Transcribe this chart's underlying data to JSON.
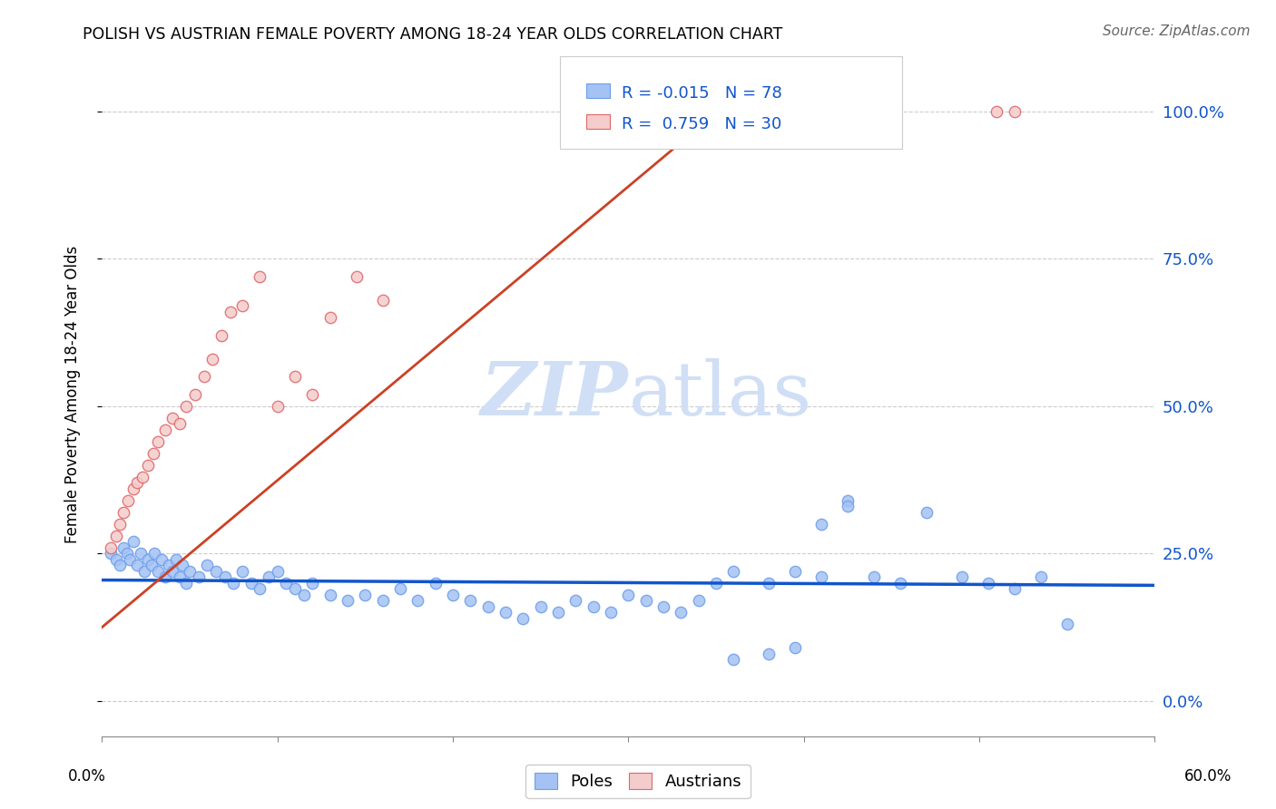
{
  "title": "POLISH VS AUSTRIAN FEMALE POVERTY AMONG 18-24 YEAR OLDS CORRELATION CHART",
  "source": "Source: ZipAtlas.com",
  "ylabel": "Female Poverty Among 18-24 Year Olds",
  "legend_poles_r": "-0.015",
  "legend_poles_n": "78",
  "legend_austrians_r": "0.759",
  "legend_austrians_n": "30",
  "blue_color": "#a4c2f4",
  "blue_edge_color": "#6d9eeb",
  "pink_color": "#f4cccc",
  "pink_edge_color": "#e06666",
  "blue_line_color": "#1155cc",
  "pink_line_color": "#cc4125",
  "watermark_color": "#d0dff5",
  "ytick_vals": [
    0.0,
    0.25,
    0.5,
    0.75,
    1.0
  ],
  "ytick_labels": [
    "0.0%",
    "25.0%",
    "50.0%",
    "75.0%",
    "100.0%"
  ],
  "xlim": [
    0.0,
    0.6
  ],
  "ylim": [
    -0.06,
    1.1
  ],
  "poles_trendline": [
    0.0,
    0.6,
    0.205,
    0.196
  ],
  "austrians_trendline": [
    0.0,
    0.355,
    0.125,
    1.01
  ],
  "poles_x": [
    0.005,
    0.008,
    0.01,
    0.012,
    0.014,
    0.016,
    0.018,
    0.02,
    0.022,
    0.024,
    0.026,
    0.028,
    0.03,
    0.032,
    0.034,
    0.036,
    0.038,
    0.04,
    0.042,
    0.044,
    0.046,
    0.048,
    0.05,
    0.055,
    0.06,
    0.065,
    0.07,
    0.075,
    0.08,
    0.085,
    0.09,
    0.095,
    0.1,
    0.105,
    0.11,
    0.115,
    0.12,
    0.13,
    0.14,
    0.15,
    0.16,
    0.17,
    0.18,
    0.19,
    0.2,
    0.21,
    0.22,
    0.23,
    0.24,
    0.25,
    0.26,
    0.27,
    0.28,
    0.29,
    0.3,
    0.31,
    0.32,
    0.33,
    0.34,
    0.35,
    0.36,
    0.38,
    0.395,
    0.41,
    0.425,
    0.44,
    0.455,
    0.47,
    0.49,
    0.505,
    0.52,
    0.535,
    0.55,
    0.41,
    0.425,
    0.395,
    0.36,
    0.38
  ],
  "poles_y": [
    0.25,
    0.24,
    0.23,
    0.26,
    0.25,
    0.24,
    0.27,
    0.23,
    0.25,
    0.22,
    0.24,
    0.23,
    0.25,
    0.22,
    0.24,
    0.21,
    0.23,
    0.22,
    0.24,
    0.21,
    0.23,
    0.2,
    0.22,
    0.21,
    0.23,
    0.22,
    0.21,
    0.2,
    0.22,
    0.2,
    0.19,
    0.21,
    0.22,
    0.2,
    0.19,
    0.18,
    0.2,
    0.18,
    0.17,
    0.18,
    0.17,
    0.19,
    0.17,
    0.2,
    0.18,
    0.17,
    0.16,
    0.15,
    0.14,
    0.16,
    0.15,
    0.17,
    0.16,
    0.15,
    0.18,
    0.17,
    0.16,
    0.15,
    0.17,
    0.2,
    0.22,
    0.2,
    0.22,
    0.21,
    0.34,
    0.21,
    0.2,
    0.32,
    0.21,
    0.2,
    0.19,
    0.21,
    0.13,
    0.3,
    0.33,
    0.09,
    0.07,
    0.08
  ],
  "austrians_x": [
    0.005,
    0.008,
    0.01,
    0.012,
    0.015,
    0.018,
    0.02,
    0.023,
    0.026,
    0.029,
    0.032,
    0.036,
    0.04,
    0.044,
    0.048,
    0.053,
    0.058,
    0.063,
    0.068,
    0.073,
    0.08,
    0.09,
    0.1,
    0.11,
    0.12,
    0.13,
    0.145,
    0.16,
    0.51,
    0.52
  ],
  "austrians_y": [
    0.26,
    0.28,
    0.3,
    0.32,
    0.34,
    0.36,
    0.37,
    0.38,
    0.4,
    0.42,
    0.44,
    0.46,
    0.48,
    0.47,
    0.5,
    0.52,
    0.55,
    0.58,
    0.62,
    0.66,
    0.67,
    0.72,
    0.5,
    0.55,
    0.52,
    0.65,
    0.72,
    0.68,
    1.0,
    1.0
  ]
}
